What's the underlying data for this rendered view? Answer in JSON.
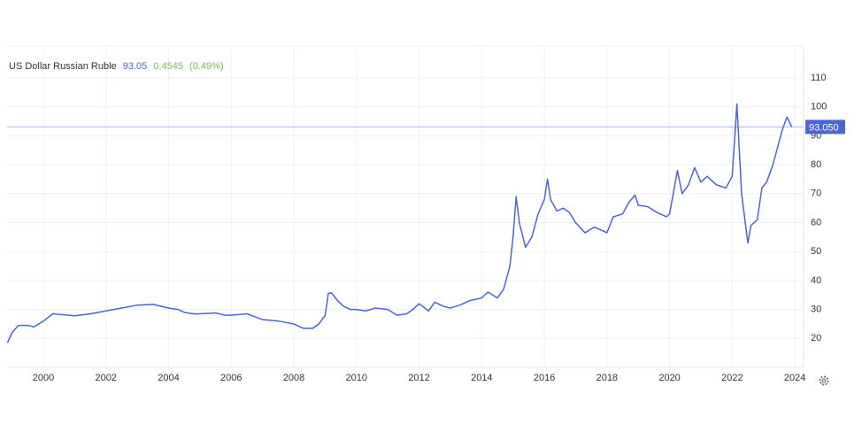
{
  "chart_data": {
    "type": "line",
    "header": {
      "name": "US Dollar Russian Ruble",
      "price": "93.05",
      "change": "0.4545",
      "change_pct": "(0.49%)"
    },
    "x": [
      1998.85,
      1999.0,
      1999.2,
      1999.5,
      1999.7,
      2000.0,
      2000.3,
      2000.6,
      2001.0,
      2001.5,
      2002.0,
      2002.5,
      2003.0,
      2003.5,
      2004.0,
      2004.3,
      2004.5,
      2004.8,
      2005.0,
      2005.5,
      2005.8,
      2006.0,
      2006.5,
      2007.0,
      2007.5,
      2008.0,
      2008.3,
      2008.6,
      2008.8,
      2009.0,
      2009.1,
      2009.2,
      2009.4,
      2009.6,
      2009.8,
      2010.0,
      2010.3,
      2010.6,
      2011.0,
      2011.3,
      2011.6,
      2011.8,
      2012.0,
      2012.3,
      2012.5,
      2012.8,
      2013.0,
      2013.3,
      2013.6,
      2014.0,
      2014.2,
      2014.5,
      2014.7,
      2014.9,
      2015.0,
      2015.1,
      2015.2,
      2015.4,
      2015.6,
      2015.8,
      2016.0,
      2016.1,
      2016.2,
      2016.4,
      2016.6,
      2016.8,
      2017.0,
      2017.3,
      2017.6,
      2017.8,
      2018.0,
      2018.2,
      2018.5,
      2018.7,
      2018.9,
      2019.0,
      2019.3,
      2019.6,
      2019.9,
      2020.0,
      2020.25,
      2020.4,
      2020.6,
      2020.8,
      2021.0,
      2021.2,
      2021.5,
      2021.8,
      2022.0,
      2022.15,
      2022.3,
      2022.5,
      2022.6,
      2022.8,
      2022.95,
      2023.1,
      2023.3,
      2023.6,
      2023.75,
      2023.9
    ],
    "series": [
      {
        "name": "US Dollar Russian Ruble",
        "color": "#4a65d6",
        "values": [
          18.5,
          22,
          24.5,
          24.5,
          24,
          26,
          28.5,
          28.2,
          27.8,
          28.5,
          29.5,
          30.5,
          31.5,
          31.8,
          30.5,
          30,
          29,
          28.5,
          28.5,
          28.8,
          28,
          28,
          28.5,
          26.5,
          26,
          25,
          23.5,
          23.5,
          25,
          28,
          35.5,
          35.8,
          33,
          31,
          30,
          30,
          29.5,
          30.5,
          30,
          28,
          28.5,
          30,
          32,
          29.5,
          32.5,
          31,
          30.5,
          31.5,
          33,
          34,
          36,
          34,
          37,
          45,
          55,
          69,
          60,
          51.5,
          55,
          63,
          68,
          75,
          68,
          64,
          65,
          63.5,
          60,
          56.5,
          58.5,
          57.5,
          56.5,
          62,
          63,
          67,
          69.5,
          66,
          65.5,
          63.5,
          62,
          63,
          78,
          70,
          73,
          79,
          74,
          76,
          73,
          72,
          76,
          101,
          70,
          53,
          59,
          61,
          72,
          74,
          80,
          92,
          96.5,
          93.05
        ]
      }
    ],
    "price_line": {
      "value": 93.05,
      "label": "93.050"
    },
    "xlim": [
      1998.84,
      2024.28
    ],
    "xticks": [
      2000,
      2002,
      2004,
      2006,
      2008,
      2010,
      2012,
      2014,
      2016,
      2018,
      2020,
      2022,
      2024
    ],
    "ylim": [
      10,
      121
    ],
    "yticks": [
      20,
      30,
      40,
      50,
      60,
      70,
      80,
      90,
      100,
      110
    ],
    "grid": true
  }
}
